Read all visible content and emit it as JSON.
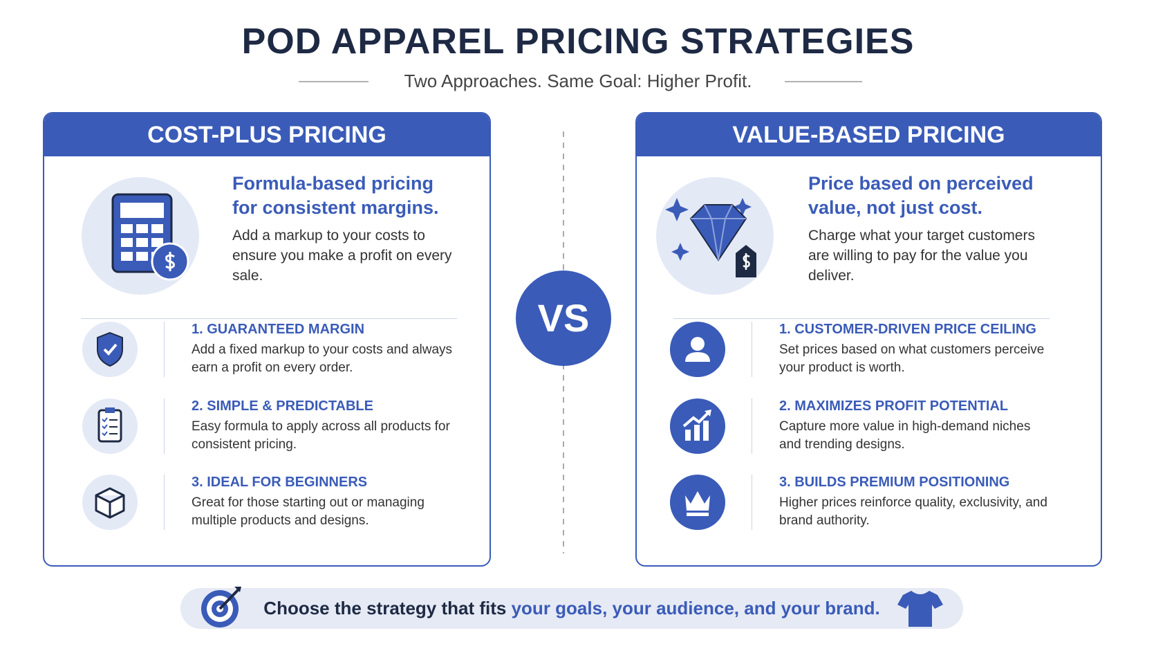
{
  "header": {
    "title": "POD APPAREL PRICING STRATEGIES",
    "subtitle": "Two Approaches. Same Goal: Higher Profit."
  },
  "panels": [
    {
      "title": "COST-PLUS PRICING",
      "headline": "Formula-based pricing for consistent margins.",
      "description": "Add a markup to your costs to ensure you make a profit on every sale.",
      "items": [
        {
          "title": "1. GUARANTEED MARGIN",
          "text": "Add a fixed markup to your costs and always earn a profit on every order."
        },
        {
          "title": "2. SIMPLE & PREDICTABLE",
          "text": "Easy formula to apply across all products for consistent pricing."
        },
        {
          "title": "3. IDEAL FOR BEGINNERS",
          "text": "Great for those starting out or managing multiple products and designs."
        }
      ]
    },
    {
      "title": "VALUE-BASED PRICING",
      "headline": "Price based on perceived value, not just cost.",
      "description": "Charge what your target customers are willing to pay for the value you deliver.",
      "items": [
        {
          "title": "1. CUSTOMER-DRIVEN PRICE CEILING",
          "text": "Set prices based on what customers perceive your product is worth."
        },
        {
          "title": "2. MAXIMIZES PROFIT POTENTIAL",
          "text": "Capture more value in high-demand niches and trending designs."
        },
        {
          "title": "3. BUILDS PREMIUM POSITIONING",
          "text": "Higher prices reinforce quality, exclusivity, and brand authority."
        }
      ]
    }
  ],
  "vs": "VS",
  "footer": {
    "text": "Choose the strategy that fits",
    "highlight": "your goals, your audience, and your brand."
  }
}
